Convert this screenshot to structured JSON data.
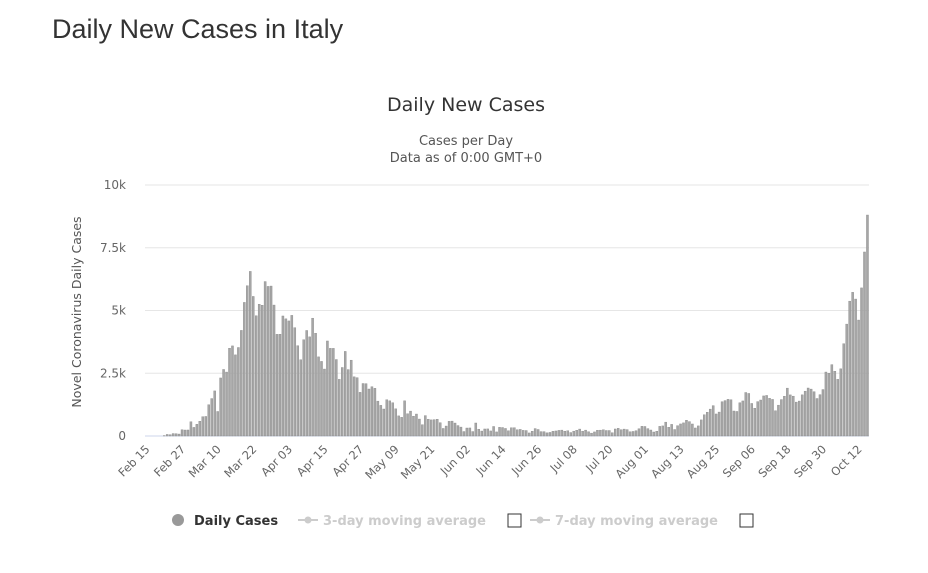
{
  "page_title": "Daily New Cases in Italy",
  "chart_data": {
    "type": "bar",
    "title": "Daily New Cases",
    "subtitle_lines": [
      "Cases per Day",
      "Data as of 0:00 GMT+0"
    ],
    "xlabel": "",
    "ylabel": "Novel Coronavirus Daily Cases",
    "ylim": [
      0,
      10000
    ],
    "yticks": [
      0,
      2500,
      5000,
      7500,
      10000
    ],
    "ytick_labels": [
      "0",
      "2.5k",
      "5k",
      "7.5k",
      "10k"
    ],
    "start_date": "Feb 15",
    "xtick_labels": [
      "Feb 15",
      "Feb 27",
      "Mar 10",
      "Mar 22",
      "Apr 03",
      "Apr 15",
      "Apr 27",
      "May 09",
      "May 21",
      "Jun 02",
      "Jun 14",
      "Jun 26",
      "Jul 08",
      "Jul 20",
      "Aug 01",
      "Aug 13",
      "Aug 25",
      "Sep 06",
      "Sep 18",
      "Sep 30",
      "Oct 12"
    ],
    "xtick_step_days": 12,
    "grid": true,
    "series": [
      {
        "name": "Daily Cases",
        "color": "#999999",
        "values": [
          0,
          0,
          0,
          0,
          0,
          0,
          17,
          62,
          53,
          97,
          93,
          78,
          250,
          238,
          240,
          566,
          342,
          466,
          587,
          769,
          778,
          1247,
          1492,
          1797,
          977,
          2313,
          2651,
          2547,
          3497,
          3590,
          3233,
          3526,
          4207,
          5322,
          5986,
          6557,
          5560,
          4789,
          5249,
          5210,
          6153,
          5959,
          5974,
          5217,
          4050,
          4053,
          4782,
          4668,
          4585,
          4805,
          4316,
          3599,
          3039,
          3836,
          4204,
          3951,
          4694,
          4092,
          3153,
          2972,
          2667,
          3786,
          3493,
          3491,
          3047,
          2256,
          2729,
          3370,
          2646,
          3021,
          2357,
          2324,
          1739,
          2091,
          2086,
          1872,
          1965,
          1900,
          1389,
          1221,
          1075,
          1444,
          1401,
          1327,
          1083,
          802,
          744,
          1402,
          888,
          992,
          789,
          875,
          675,
          451,
          813,
          665,
          642,
          652,
          669,
          531,
          300,
          397,
          584,
          593,
          516,
          416,
          355,
          178,
          318,
          321,
          177,
          518,
          270,
          197,
          280,
          283,
          202,
          379,
          163,
          346,
          338,
          301,
          210,
          328,
          331,
          251,
          262,
          224,
          218,
          122,
          190,
          296,
          259,
          175,
          174,
          126,
          142,
          187,
          201,
          223,
          235,
          192,
          208,
          138,
          193,
          229,
          276,
          188,
          234,
          169,
          114,
          163,
          230,
          233,
          249,
          219,
          218,
          130,
          280,
          306,
          252,
          275,
          255,
          168,
          181,
          212,
          289,
          386,
          379,
          295,
          239,
          159,
          190,
          384,
          402,
          552,
          347,
          463,
          259,
          412,
          481,
          523,
          629,
          574,
          479,
          320,
          403,
          642,
          845,
          947,
          1071,
          1210,
          878,
          953,
          1367,
          1411,
          1460,
          1444,
          996,
          978,
          1326,
          1397,
          1733,
          1695,
          1297,
          1108,
          1370,
          1434,
          1597,
          1616,
          1501,
          1458,
          1008,
          1229,
          1452,
          1585,
          1907,
          1638,
          1587,
          1350,
          1392,
          1640,
          1786,
          1912,
          1869,
          1766,
          1494,
          1648,
          1851,
          2548,
          2499,
          2844,
          2578,
          2257,
          2677,
          3678,
          4458,
          5372,
          5724,
          5456,
          4619,
          5901,
          7332,
          8804
        ]
      }
    ],
    "legend": {
      "placement": "bottom-center",
      "items": [
        {
          "label": "Daily Cases",
          "active": true
        },
        {
          "label": "3-day moving average",
          "active": false,
          "checked": false
        },
        {
          "label": "7-day moving average",
          "active": false,
          "checked": false
        }
      ]
    }
  }
}
